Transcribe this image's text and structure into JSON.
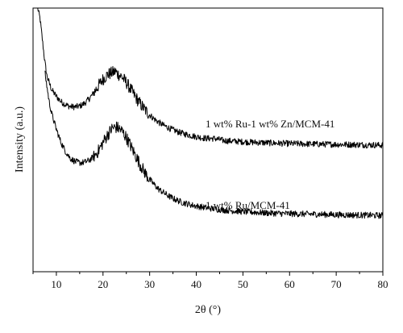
{
  "chart_data": {
    "type": "line",
    "title": "",
    "xlabel": "2θ (°)",
    "ylabel": "Intensity (a.u.)",
    "xlim": [
      5,
      80
    ],
    "ylim": [
      0,
      1
    ],
    "xticks": [
      10,
      20,
      30,
      40,
      50,
      60,
      70,
      80
    ],
    "yticks": [],
    "grid": false,
    "legend": "none",
    "series": [
      {
        "name": "1 wt% Ru-1 wt% Zn/MCM-41",
        "color": "#000000",
        "x": [
          6,
          6.5,
          7,
          7.5,
          8,
          9,
          10,
          11,
          12,
          13,
          14,
          15,
          16,
          17,
          18,
          19,
          20,
          21,
          22,
          22.7,
          23,
          24,
          25,
          26,
          27,
          28,
          29,
          30,
          31,
          32,
          33,
          34,
          35,
          36,
          37,
          38,
          39,
          40,
          42,
          44,
          46,
          48,
          50,
          52,
          55,
          58,
          60,
          63,
          66,
          70,
          74,
          77,
          80
        ],
        "y": [
          1.0,
          0.96,
          0.88,
          0.8,
          0.74,
          0.69,
          0.665,
          0.645,
          0.633,
          0.626,
          0.625,
          0.628,
          0.638,
          0.655,
          0.678,
          0.705,
          0.73,
          0.748,
          0.755,
          0.76,
          0.752,
          0.74,
          0.718,
          0.69,
          0.662,
          0.636,
          0.614,
          0.595,
          0.579,
          0.566,
          0.555,
          0.546,
          0.538,
          0.531,
          0.525,
          0.52,
          0.516,
          0.512,
          0.506,
          0.505,
          0.497,
          0.495,
          0.493,
          0.491,
          0.489,
          0.487,
          0.486,
          0.485,
          0.484,
          0.483,
          0.482,
          0.481,
          0.48
        ]
      },
      {
        "name": "1 wt% Ru/MCM-41",
        "color": "#000000",
        "x": [
          7.5,
          8,
          8.5,
          9,
          10,
          11,
          12,
          13,
          14,
          15,
          16,
          17,
          18,
          19,
          20,
          21,
          22,
          23,
          24,
          25,
          26,
          27,
          28,
          29,
          30,
          31,
          32,
          33,
          34,
          35,
          36,
          37,
          38,
          39,
          40,
          42,
          44,
          46,
          48,
          50,
          52,
          55,
          58,
          60,
          63,
          66,
          70,
          74,
          77,
          80
        ],
        "y": [
          0.76,
          0.7,
          0.64,
          0.6,
          0.54,
          0.49,
          0.455,
          0.43,
          0.418,
          0.413,
          0.415,
          0.422,
          0.436,
          0.458,
          0.49,
          0.52,
          0.545,
          0.548,
          0.535,
          0.51,
          0.475,
          0.44,
          0.405,
          0.375,
          0.35,
          0.33,
          0.312,
          0.3,
          0.288,
          0.278,
          0.27,
          0.263,
          0.258,
          0.253,
          0.249,
          0.243,
          0.238,
          0.234,
          0.231,
          0.228,
          0.226,
          0.223,
          0.221,
          0.22,
          0.219,
          0.218,
          0.216,
          0.215,
          0.214,
          0.213
        ]
      }
    ]
  }
}
